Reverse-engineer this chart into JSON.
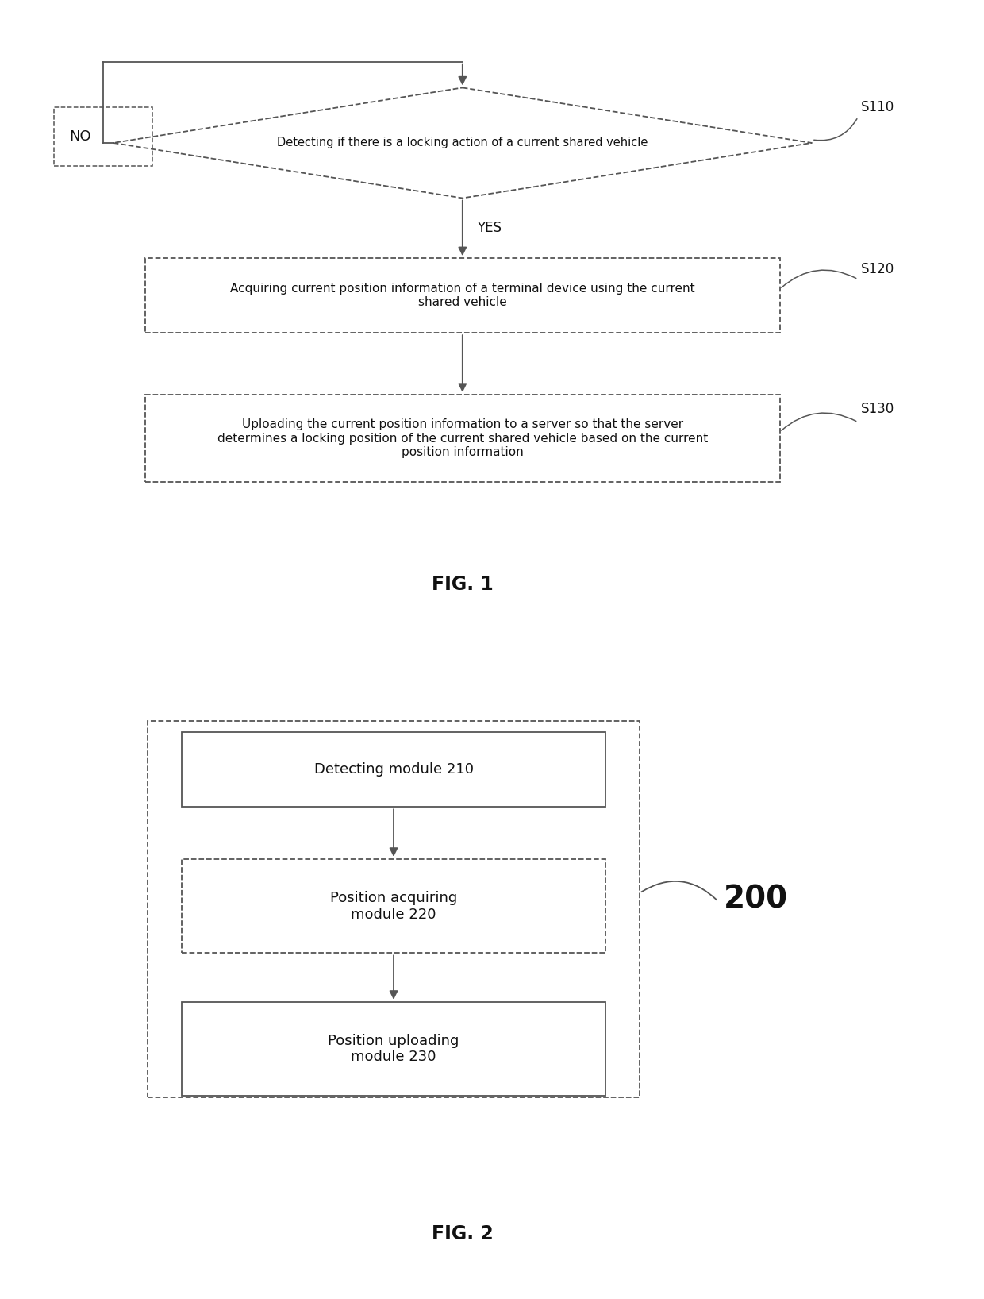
{
  "bg_color": "#ffffff",
  "line_color": "#555555",
  "fig1": {
    "title": "FIG. 1",
    "diamond_text": "Detecting if there is a locking action of a current shared vehicle",
    "diamond_label": "S110",
    "no_label": "NO",
    "yes_label": "YES",
    "box2_text": "Acquiring current position information of a terminal device using the current\nshared vehicle",
    "box2_label": "S120",
    "box3_text": "Uploading the current position information to a server so that the server\ndetermines a locking position of the current shared vehicle based on the current\nposition information",
    "box3_label": "S130"
  },
  "fig2": {
    "title": "FIG. 2",
    "box1_text": "Detecting module 210",
    "box2_text": "Position acquiring\nmodule 220",
    "box3_text": "Position uploading\nmodule 230",
    "label_200": "200"
  }
}
